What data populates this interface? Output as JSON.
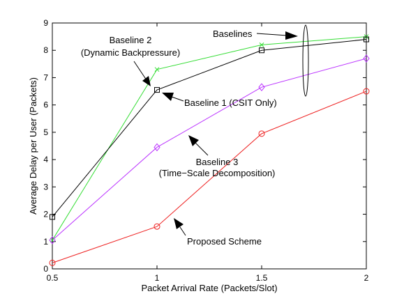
{
  "chart_data": {
    "type": "line",
    "title": "",
    "xlabel": "Packet Arrival Rate (Packets/Slot)",
    "ylabel": "Average Delay per User (Packets)",
    "xlim": [
      0.5,
      2
    ],
    "ylim": [
      0,
      9
    ],
    "x": [
      0.5,
      1,
      1.5,
      2
    ],
    "xticks": [
      "0.5",
      "1",
      "1.5",
      "2"
    ],
    "yticks": [
      "0",
      "1",
      "2",
      "3",
      "4",
      "5",
      "6",
      "7",
      "8",
      "9"
    ],
    "grid": false,
    "series": [
      {
        "name": "Baseline 2 (Dynamic Backpressure)",
        "values": [
          1.05,
          7.3,
          8.2,
          8.5
        ],
        "color": "#33dd33",
        "marker": "x"
      },
      {
        "name": "Baseline 1 (CSIT Only)",
        "values": [
          1.9,
          6.55,
          8.0,
          8.4
        ],
        "color": "#000000",
        "marker": "square"
      },
      {
        "name": "Baseline 3 (Time-Scale Decomposition)",
        "values": [
          1.05,
          4.45,
          6.65,
          7.7
        ],
        "color": "#bb33ff",
        "marker": "diamond"
      },
      {
        "name": "Proposed Scheme",
        "values": [
          0.22,
          1.55,
          4.95,
          6.5
        ],
        "color": "#ee2222",
        "marker": "circle"
      }
    ],
    "annotations": [
      {
        "lines": [
          "Baseline 2",
          "(Dynamic Backpressure)"
        ]
      },
      {
        "lines": [
          "Baselines"
        ]
      },
      {
        "lines": [
          "Baseline 1 (CSIT Only)"
        ]
      },
      {
        "lines": [
          "Baseline 3",
          "(Time−Scale Decomposition)"
        ]
      },
      {
        "lines": [
          "Proposed Scheme"
        ]
      }
    ]
  }
}
